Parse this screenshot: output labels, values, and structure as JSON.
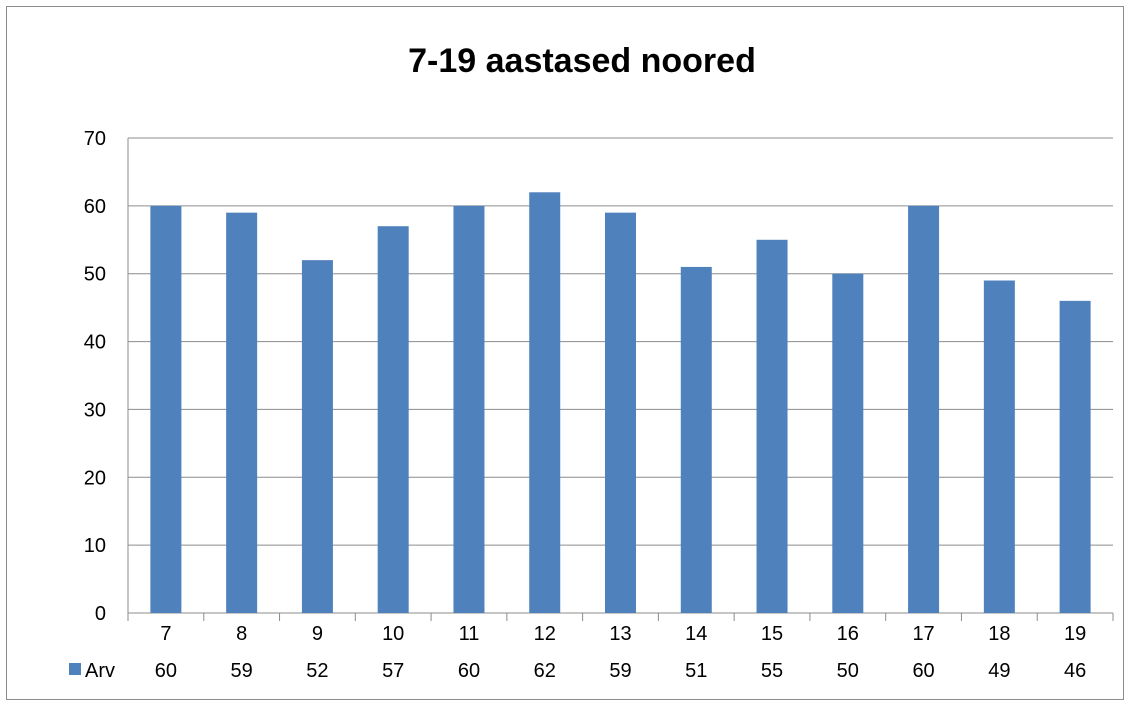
{
  "chart_data": {
    "type": "bar",
    "title": "7-19 aastased noored",
    "xlabel": "",
    "ylabel": "",
    "categories": [
      "7",
      "8",
      "9",
      "10",
      "11",
      "12",
      "13",
      "14",
      "15",
      "16",
      "17",
      "18",
      "19"
    ],
    "series": [
      {
        "name": "Arv",
        "values": [
          60,
          59,
          52,
          57,
          60,
          62,
          59,
          51,
          55,
          50,
          60,
          49,
          46
        ],
        "color": "#4f81bd"
      }
    ],
    "ylim": [
      0,
      70
    ],
    "yticks": [
      0,
      10,
      20,
      30,
      40,
      50,
      60,
      70
    ],
    "grid": true,
    "legend": "data-table-bottom"
  }
}
